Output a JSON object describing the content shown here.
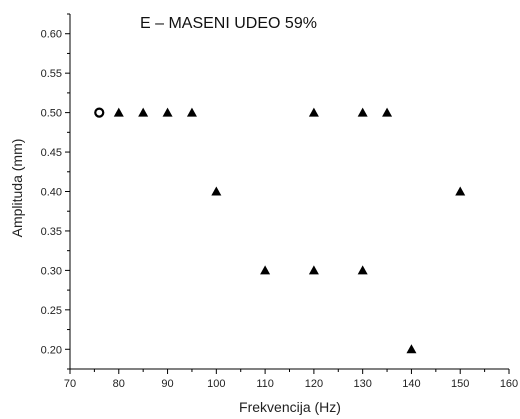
{
  "chart_data": {
    "type": "scatter",
    "title": "E – MASENI UDEO 59%",
    "xlabel": "Frekvencija (Hz)",
    "ylabel": "Amplituda (mm)",
    "xlim": [
      70,
      160
    ],
    "ylim": [
      0.175,
      0.625
    ],
    "x_ticks": [
      "70",
      "80",
      "90",
      "100",
      "110",
      "120",
      "130",
      "140",
      "150",
      "160"
    ],
    "y_ticks": [
      "0.20",
      "0.25",
      "0.30",
      "0.35",
      "0.40",
      "0.45",
      "0.50",
      "0.55",
      "0.60"
    ],
    "grid": false,
    "series": [
      {
        "marker": "circle-open",
        "color": "#000000",
        "points": [
          {
            "x": 76,
            "y": 0.5
          }
        ]
      },
      {
        "marker": "triangle",
        "color": "#000000",
        "points": [
          {
            "x": 80,
            "y": 0.5
          },
          {
            "x": 85,
            "y": 0.5
          },
          {
            "x": 90,
            "y": 0.5
          },
          {
            "x": 95,
            "y": 0.5
          },
          {
            "x": 100,
            "y": 0.4
          },
          {
            "x": 110,
            "y": 0.3
          },
          {
            "x": 120,
            "y": 0.5
          },
          {
            "x": 120,
            "y": 0.3
          },
          {
            "x": 130,
            "y": 0.5
          },
          {
            "x": 130,
            "y": 0.3
          },
          {
            "x": 135,
            "y": 0.5
          },
          {
            "x": 140,
            "y": 0.2
          },
          {
            "x": 150,
            "y": 0.4
          }
        ]
      }
    ]
  }
}
